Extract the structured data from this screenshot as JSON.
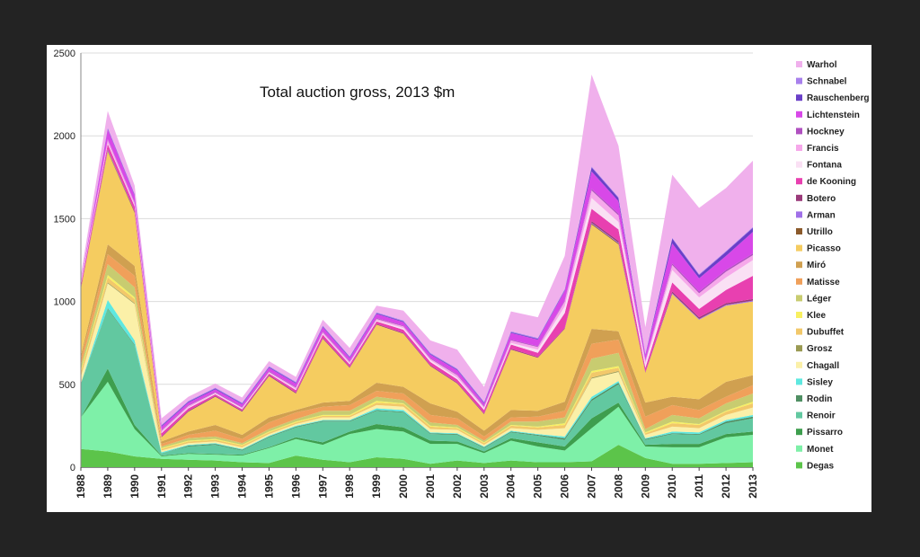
{
  "chart_data": {
    "type": "area",
    "stacked": true,
    "title": "Total auction gross, 2013 $m",
    "xlabel": "",
    "ylabel": "",
    "ylim": [
      0,
      2500
    ],
    "yticks": [
      0,
      500,
      1000,
      1500,
      2000,
      2500
    ],
    "grid": true,
    "legend_position": "right",
    "x": [
      "1988",
      "1989",
      "1990",
      "1991",
      "1992",
      "1993",
      "1994",
      "1995",
      "1996",
      "1997",
      "1998",
      "1999",
      "2000",
      "2001",
      "2002",
      "2003",
      "2004",
      "2005",
      "2006",
      "2007",
      "2008",
      "2009",
      "2010",
      "2011",
      "2012",
      "2013"
    ],
    "series": [
      {
        "name": "Degas",
        "color": "#5cc44a",
        "values": [
          110,
          95,
          65,
          50,
          45,
          40,
          30,
          25,
          70,
          45,
          30,
          60,
          50,
          20,
          40,
          25,
          40,
          30,
          30,
          35,
          135,
          55,
          20,
          20,
          25,
          30
        ]
      },
      {
        "name": "Monet",
        "color": "#7ef0a8",
        "values": [
          190,
          420,
          165,
          15,
          35,
          35,
          40,
          90,
          100,
          90,
          170,
          170,
          165,
          120,
          100,
          60,
          120,
          95,
          70,
          200,
          230,
          70,
          100,
          100,
          155,
          165
        ]
      },
      {
        "name": "Pissarro",
        "color": "#3e9e4e",
        "values": [
          0,
          80,
          25,
          5,
          5,
          5,
          5,
          5,
          10,
          15,
          15,
          30,
          25,
          20,
          15,
          10,
          15,
          25,
          25,
          60,
          25,
          10,
          20,
          20,
          20,
          20
        ]
      },
      {
        "name": "Renoir",
        "color": "#62c8a0",
        "values": [
          200,
          360,
          480,
          15,
          40,
          55,
          25,
          60,
          60,
          125,
          60,
          80,
          90,
          40,
          40,
          20,
          35,
          40,
          40,
          105,
          110,
          30,
          60,
          55,
          65,
          80
        ]
      },
      {
        "name": "Rodin",
        "color": "#4f8f63",
        "values": [
          5,
          5,
          5,
          0,
          5,
          5,
          5,
          5,
          5,
          5,
          5,
          5,
          5,
          5,
          5,
          5,
          5,
          5,
          10,
          10,
          10,
          5,
          5,
          5,
          10,
          10
        ]
      },
      {
        "name": "Sisley",
        "color": "#5ee8e0",
        "values": [
          0,
          50,
          25,
          5,
          5,
          5,
          5,
          5,
          5,
          5,
          5,
          10,
          10,
          5,
          5,
          5,
          5,
          5,
          10,
          15,
          10,
          5,
          10,
          10,
          10,
          10
        ]
      },
      {
        "name": "Chagall",
        "color": "#fbf0a8",
        "values": [
          40,
          100,
          220,
          10,
          10,
          10,
          10,
          10,
          10,
          15,
          15,
          20,
          20,
          20,
          20,
          10,
          15,
          25,
          50,
          110,
          55,
          20,
          30,
          25,
          30,
          45
        ]
      },
      {
        "name": "Grosz",
        "color": "#9a9a52",
        "values": [
          0,
          5,
          5,
          0,
          0,
          0,
          0,
          0,
          0,
          0,
          0,
          0,
          0,
          0,
          0,
          0,
          0,
          0,
          0,
          5,
          5,
          0,
          0,
          0,
          0,
          0
        ]
      },
      {
        "name": "Dubuffet",
        "color": "#f2c86a",
        "values": [
          30,
          30,
          25,
          10,
          10,
          10,
          10,
          10,
          10,
          10,
          10,
          15,
          15,
          15,
          10,
          10,
          15,
          15,
          20,
          30,
          20,
          10,
          20,
          20,
          20,
          25
        ]
      },
      {
        "name": "Klee",
        "color": "#f8f060",
        "values": [
          10,
          15,
          10,
          5,
          5,
          5,
          5,
          5,
          5,
          5,
          5,
          10,
          5,
          5,
          5,
          5,
          5,
          5,
          10,
          10,
          10,
          5,
          10,
          5,
          5,
          10
        ]
      },
      {
        "name": "Léger",
        "color": "#c8cc70",
        "values": [
          30,
          65,
          60,
          10,
          15,
          15,
          10,
          15,
          15,
          25,
          25,
          25,
          20,
          20,
          15,
          10,
          20,
          30,
          35,
          75,
          80,
          20,
          40,
          35,
          45,
          50
        ]
      },
      {
        "name": "Matisse",
        "color": "#f0a05a",
        "values": [
          40,
          60,
          70,
          15,
          20,
          35,
          25,
          40,
          40,
          25,
          35,
          35,
          40,
          45,
          40,
          25,
          25,
          30,
          40,
          90,
          80,
          75,
          60,
          50,
          40,
          50
        ]
      },
      {
        "name": "Miró",
        "color": "#d0a050",
        "values": [
          20,
          60,
          60,
          15,
          20,
          35,
          25,
          30,
          15,
          25,
          25,
          50,
          40,
          70,
          40,
          35,
          45,
          35,
          55,
          90,
          50,
          85,
          50,
          65,
          90,
          60
        ]
      },
      {
        "name": "Picasso",
        "color": "#f5cc60",
        "values": [
          400,
          560,
          320,
          25,
          120,
          170,
          140,
          250,
          100,
          385,
          200,
          350,
          320,
          225,
          170,
          100,
          365,
          320,
          440,
          630,
          525,
          180,
          620,
          480,
          460,
          445
        ]
      },
      {
        "name": "Utrillo",
        "color": "#8b5a2b",
        "values": [
          5,
          5,
          5,
          0,
          0,
          0,
          0,
          0,
          0,
          0,
          0,
          0,
          0,
          0,
          0,
          0,
          0,
          0,
          0,
          5,
          5,
          0,
          0,
          0,
          0,
          0
        ]
      },
      {
        "name": "Arman",
        "color": "#a070e8",
        "values": [
          0,
          5,
          0,
          0,
          0,
          0,
          0,
          0,
          0,
          0,
          0,
          0,
          0,
          0,
          0,
          0,
          0,
          0,
          0,
          5,
          5,
          0,
          5,
          5,
          5,
          5
        ]
      },
      {
        "name": "Botero",
        "color": "#9a3a7a",
        "values": [
          0,
          5,
          5,
          5,
          5,
          5,
          5,
          5,
          5,
          5,
          5,
          5,
          5,
          5,
          5,
          5,
          5,
          5,
          5,
          10,
          10,
          5,
          10,
          10,
          10,
          10
        ]
      },
      {
        "name": "de Kooning",
        "color": "#e840b0",
        "values": [
          20,
          30,
          30,
          20,
          15,
          10,
          10,
          10,
          15,
          20,
          15,
          15,
          20,
          20,
          20,
          20,
          25,
          25,
          90,
          75,
          70,
          25,
          55,
          50,
          80,
          140
        ]
      },
      {
        "name": "Fontana",
        "color": "#fae0f4",
        "values": [
          0,
          5,
          5,
          5,
          5,
          5,
          5,
          5,
          5,
          5,
          5,
          5,
          10,
          10,
          10,
          10,
          10,
          20,
          40,
          65,
          45,
          25,
          75,
          70,
          75,
          95
        ]
      },
      {
        "name": "Francis",
        "color": "#f6a8ea",
        "values": [
          15,
          20,
          15,
          10,
          10,
          5,
          5,
          5,
          10,
          10,
          10,
          10,
          10,
          10,
          15,
          10,
          15,
          15,
          30,
          45,
          40,
          15,
          30,
          25,
          35,
          30
        ]
      },
      {
        "name": "Hockney",
        "color": "#b050c0",
        "values": [
          0,
          5,
          5,
          5,
          5,
          5,
          5,
          5,
          5,
          5,
          5,
          5,
          5,
          5,
          5,
          5,
          5,
          5,
          5,
          10,
          10,
          5,
          10,
          10,
          10,
          10
        ]
      },
      {
        "name": "Lichtenstein",
        "color": "#d848e8",
        "values": [
          5,
          60,
          40,
          20,
          15,
          15,
          15,
          20,
          20,
          25,
          20,
          25,
          20,
          20,
          25,
          15,
          40,
          40,
          60,
          105,
          75,
          30,
          120,
          80,
          85,
          130
        ]
      },
      {
        "name": "Rauschenberg",
        "color": "#6a40c8",
        "values": [
          0,
          5,
          5,
          5,
          5,
          5,
          5,
          5,
          5,
          5,
          5,
          5,
          5,
          5,
          5,
          5,
          5,
          5,
          5,
          25,
          20,
          5,
          30,
          20,
          25,
          25
        ]
      },
      {
        "name": "Schnabel",
        "color": "#a880ec",
        "values": [
          0,
          5,
          5,
          5,
          5,
          5,
          5,
          5,
          5,
          5,
          5,
          5,
          5,
          5,
          5,
          5,
          5,
          5,
          5,
          5,
          5,
          5,
          5,
          5,
          5,
          5
        ]
      },
      {
        "name": "Warhol",
        "color": "#f0b0ec",
        "values": [
          40,
          100,
          50,
          40,
          25,
          25,
          30,
          30,
          30,
          35,
          50,
          40,
          60,
          75,
          115,
          90,
          120,
          125,
          200,
          555,
          310,
          160,
          380,
          400,
          380,
          400
        ]
      }
    ]
  }
}
